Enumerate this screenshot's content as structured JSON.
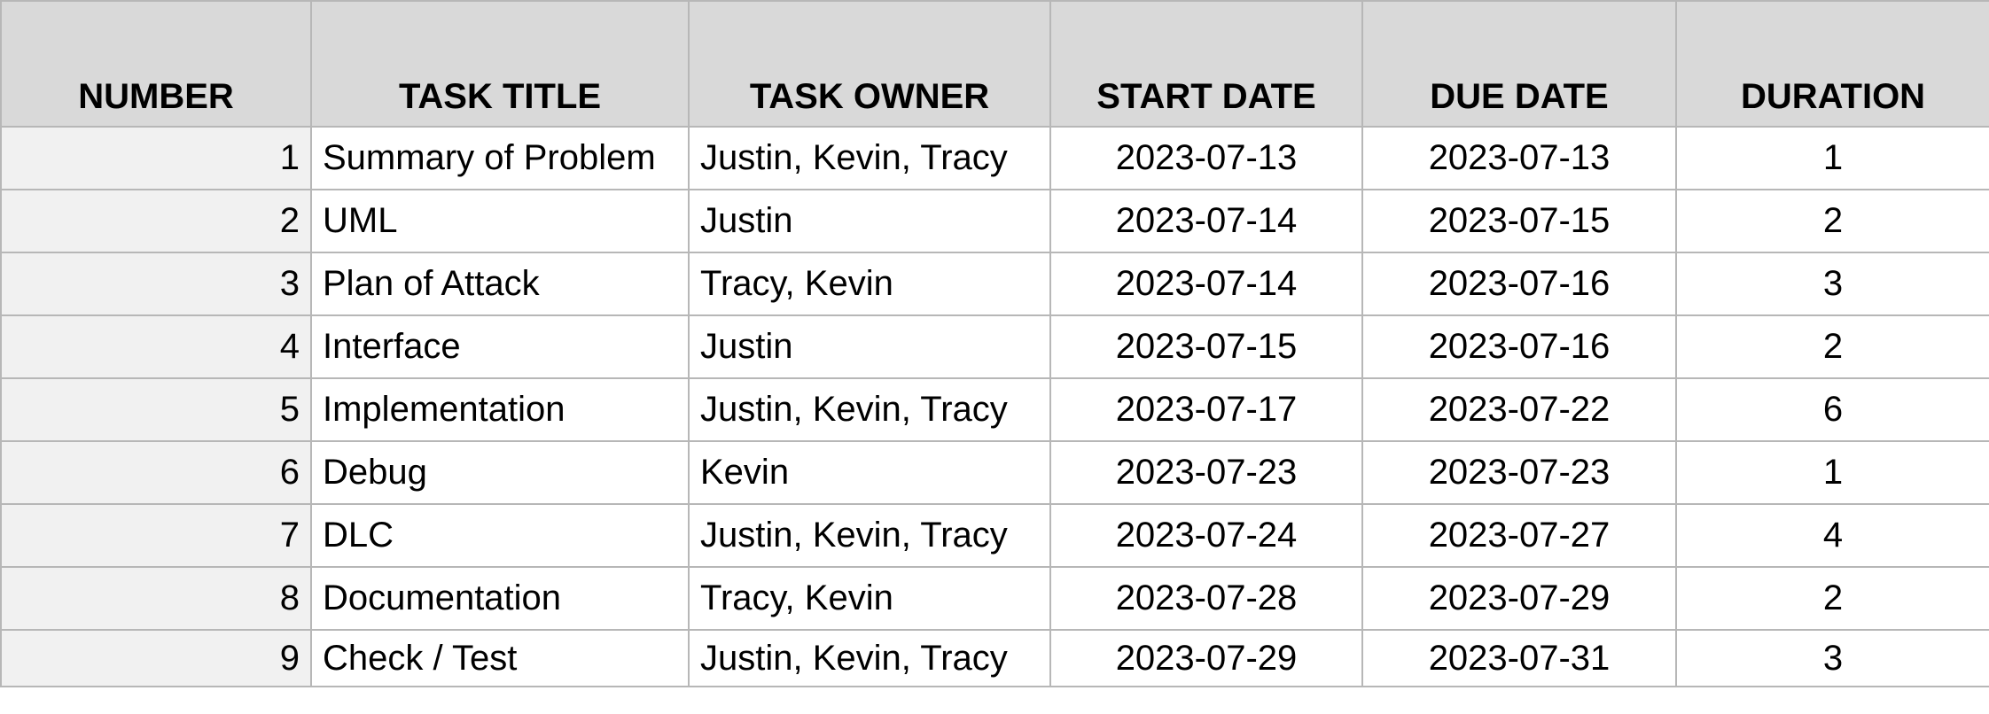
{
  "header": {
    "number": "NUMBER",
    "task_title": "TASK TITLE",
    "task_owner": "TASK OWNER",
    "start_date": "START DATE",
    "due_date": "DUE DATE",
    "duration": "DURATION"
  },
  "rows": [
    {
      "number": "1",
      "task_title": "Summary of Problem",
      "task_owner": "Justin, Kevin, Tracy",
      "start_date": "2023-07-13",
      "due_date": "2023-07-13",
      "duration": "1"
    },
    {
      "number": "2",
      "task_title": "UML",
      "task_owner": "Justin",
      "start_date": "2023-07-14",
      "due_date": "2023-07-15",
      "duration": "2"
    },
    {
      "number": "3",
      "task_title": "Plan of Attack",
      "task_owner": "Tracy, Kevin",
      "start_date": "2023-07-14",
      "due_date": "2023-07-16",
      "duration": "3"
    },
    {
      "number": "4",
      "task_title": "Interface",
      "task_owner": "Justin",
      "start_date": "2023-07-15",
      "due_date": "2023-07-16",
      "duration": "2"
    },
    {
      "number": "5",
      "task_title": "Implementation",
      "task_owner": "Justin, Kevin, Tracy",
      "start_date": "2023-07-17",
      "due_date": "2023-07-22",
      "duration": "6"
    },
    {
      "number": "6",
      "task_title": "Debug",
      "task_owner": "Kevin",
      "start_date": "2023-07-23",
      "due_date": "2023-07-23",
      "duration": "1"
    },
    {
      "number": "7",
      "task_title": "DLC",
      "task_owner": "Justin, Kevin, Tracy",
      "start_date": "2023-07-24",
      "due_date": "2023-07-27",
      "duration": "4"
    },
    {
      "number": "8",
      "task_title": "Documentation",
      "task_owner": "Tracy, Kevin",
      "start_date": "2023-07-28",
      "due_date": "2023-07-29",
      "duration": "2"
    },
    {
      "number": "9",
      "task_title": "Check / Test",
      "task_owner": "Justin, Kevin, Tracy",
      "start_date": "2023-07-29",
      "due_date": "2023-07-31",
      "duration": "3"
    }
  ],
  "colors": {
    "header_bg": "#d9d9d9",
    "number_col_bg": "#f1f1f1",
    "grid": "#b7b7b7"
  }
}
